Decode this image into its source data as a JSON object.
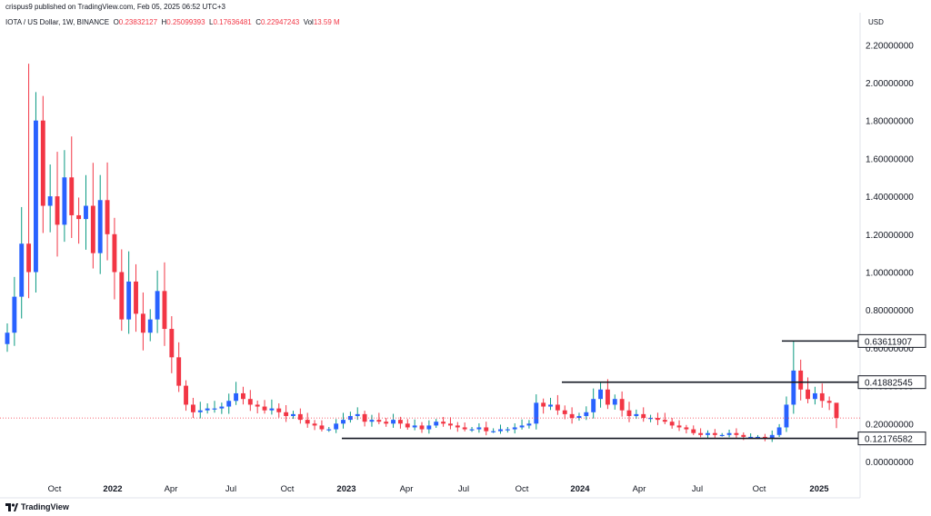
{
  "header": {
    "published": "crispus9 published on TradingView.com, Feb 05, 2025 06:52 UTC+3",
    "symbol": "IOTA / US Dollar, 1W, BINANCE",
    "o_label": "O",
    "o_value": "0.23832127",
    "h_label": "H",
    "h_value": "0.25099393",
    "l_label": "L",
    "l_value": "0.17636481",
    "c_label": "C",
    "c_value": "0.22947243",
    "vol_label": "Vol",
    "vol_value": "13.59 M",
    "currency": "USD"
  },
  "footer": {
    "brand": "TradingView",
    "logo": "tradingview-logo-icon"
  },
  "colors": {
    "up": "#2962ff",
    "down": "#f23645",
    "wick_up": "#089981",
    "price_line": "#f23645"
  },
  "chart_data": {
    "type": "candlestick",
    "ylim": [
      -0.1,
      2.3
    ],
    "yticks": [
      "0.00000000",
      "0.20000000",
      "0.40000000",
      "0.60000000",
      "0.80000000",
      "1.00000000",
      "1.20000000",
      "1.40000000",
      "1.60000000",
      "1.80000000",
      "2.00000000",
      "2.20000000"
    ],
    "xticks": [
      {
        "label": "Oct",
        "year": false
      },
      {
        "label": "2022",
        "year": true
      },
      {
        "label": "Apr",
        "year": false
      },
      {
        "label": "Jul",
        "year": false
      },
      {
        "label": "Oct",
        "year": false
      },
      {
        "label": "2023",
        "year": true
      },
      {
        "label": "Apr",
        "year": false
      },
      {
        "label": "Jul",
        "year": false
      },
      {
        "label": "Oct",
        "year": false
      },
      {
        "label": "2024",
        "year": true
      },
      {
        "label": "Apr",
        "year": false
      },
      {
        "label": "Jul",
        "year": false
      },
      {
        "label": "Oct",
        "year": false
      },
      {
        "label": "2025",
        "year": true
      }
    ],
    "last_close": 0.22947243,
    "levels": [
      {
        "value": 0.63611907,
        "label": "0.63611907"
      },
      {
        "value": 0.41882545,
        "label": "0.41882545"
      },
      {
        "value": 0.12176582,
        "label": "0.12176582"
      }
    ],
    "closes": [
      0.68,
      0.87,
      1.15,
      1.0,
      1.8,
      1.35,
      1.4,
      1.25,
      1.5,
      1.3,
      1.28,
      1.35,
      1.1,
      1.38,
      1.2,
      1.0,
      0.75,
      0.95,
      0.78,
      0.68,
      0.75,
      0.9,
      0.7,
      0.55,
      0.4,
      0.3,
      0.26,
      0.27,
      0.28,
      0.28,
      0.29,
      0.32,
      0.36,
      0.33,
      0.3,
      0.29,
      0.27,
      0.28,
      0.26,
      0.24,
      0.25,
      0.22,
      0.2,
      0.19,
      0.17,
      0.17,
      0.2,
      0.22,
      0.24,
      0.25,
      0.21,
      0.22,
      0.21,
      0.2,
      0.22,
      0.2,
      0.18,
      0.19,
      0.17,
      0.19,
      0.21,
      0.2,
      0.19,
      0.18,
      0.17,
      0.17,
      0.18,
      0.16,
      0.16,
      0.17,
      0.17,
      0.18,
      0.19,
      0.2,
      0.31,
      0.29,
      0.3,
      0.27,
      0.25,
      0.23,
      0.24,
      0.26,
      0.33,
      0.38,
      0.3,
      0.33,
      0.27,
      0.24,
      0.25,
      0.23,
      0.23,
      0.22,
      0.21,
      0.19,
      0.18,
      0.17,
      0.15,
      0.14,
      0.15,
      0.14,
      0.14,
      0.15,
      0.14,
      0.13,
      0.13,
      0.13,
      0.12,
      0.14,
      0.18,
      0.3,
      0.48,
      0.38,
      0.33,
      0.36,
      0.32,
      0.31,
      0.23
    ]
  }
}
